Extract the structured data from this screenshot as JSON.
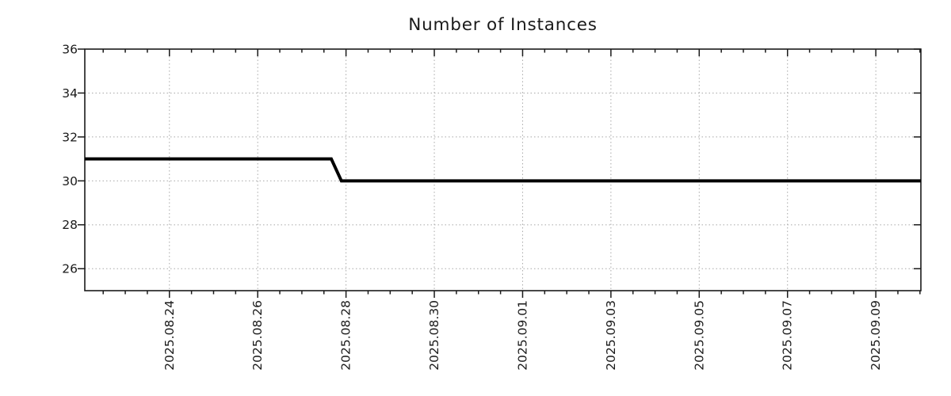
{
  "page": {
    "background": "#ffffff"
  },
  "chart_data": {
    "type": "line",
    "title": "Number of Instances",
    "xlabel": "",
    "ylabel": "",
    "legend": "none",
    "grid": {
      "show": true,
      "color": "#a8a8a8",
      "dash": "1.5,3"
    },
    "frame_color": "#1a1a1a",
    "text_color": "#1a1a1a",
    "x_axis": {
      "start": "2025-08-22T02:00",
      "end": "2025-09-10T00:30",
      "major_tick_dates": [
        "2025-08-24T00:00",
        "2025-08-26T00:00",
        "2025-08-28T00:00",
        "2025-08-30T00:00",
        "2025-09-01T00:00",
        "2025-09-03T00:00",
        "2025-09-05T00:00",
        "2025-09-07T00:00",
        "2025-09-09T00:00"
      ],
      "tick_labels": [
        "2025.08.24",
        "2025.08.26",
        "2025.08.28",
        "2025.08.30",
        "2025.09.01",
        "2025.09.03",
        "2025.09.05",
        "2025.09.07",
        "2025.09.09"
      ],
      "minor_tick_hours": 12
    },
    "y_axis": {
      "min": 25,
      "max": 36,
      "major_ticks": [
        26,
        28,
        30,
        32,
        34,
        36
      ],
      "tick_labels": [
        "26",
        "28",
        "30",
        "32",
        "34",
        "36"
      ]
    },
    "series": [
      {
        "name": "instances",
        "color": "#000000",
        "line_width": 4,
        "points": [
          [
            "2025-08-22T02:00",
            31
          ],
          [
            "2025-08-27T16:00",
            31
          ],
          [
            "2025-08-27T21:30",
            30
          ],
          [
            "2025-09-10T00:30",
            30
          ]
        ]
      }
    ]
  }
}
